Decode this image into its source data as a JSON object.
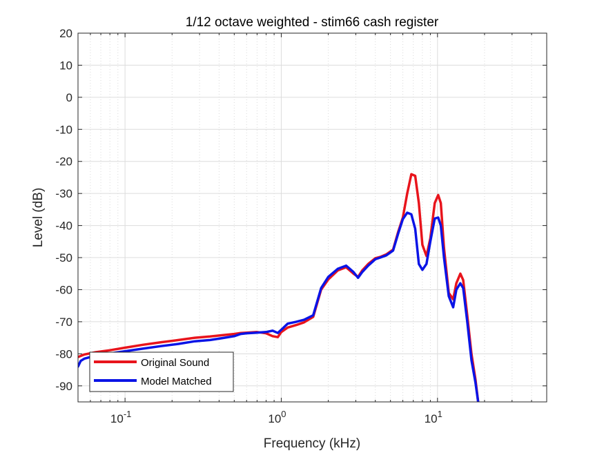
{
  "chart_data": {
    "type": "line",
    "title": "1/12 octave weighted - stim66 cash register",
    "xlabel": "Frequency (kHz)",
    "ylabel": "Level (dB)",
    "xscale": "log",
    "xlim": [
      0.05,
      50
    ],
    "ylim": [
      -95,
      20
    ],
    "grid": true,
    "minor_grid": true,
    "legend_placement": "bottom-left",
    "x_ticks": [
      {
        "base": "10",
        "exp": "-1",
        "value": 0.1
      },
      {
        "base": "10",
        "exp": "0",
        "value": 1
      },
      {
        "base": "10",
        "exp": "1",
        "value": 10
      }
    ],
    "y_ticks": [
      20,
      10,
      0,
      -10,
      -20,
      -30,
      -40,
      -50,
      -60,
      -70,
      -80,
      -90
    ],
    "series": [
      {
        "name": "Original Sound",
        "color": "#e8141c",
        "x": [
          0.05,
          0.055,
          0.065,
          0.08,
          0.1,
          0.13,
          0.17,
          0.22,
          0.28,
          0.35,
          0.42,
          0.5,
          0.55,
          0.6,
          0.7,
          0.8,
          0.88,
          0.95,
          1.0,
          1.1,
          1.25,
          1.4,
          1.6,
          1.8,
          2.0,
          2.3,
          2.6,
          2.9,
          3.1,
          3.3,
          3.6,
          4.0,
          4.3,
          4.7,
          5.2,
          5.6,
          6.0,
          6.4,
          6.8,
          7.2,
          7.6,
          8.0,
          8.5,
          9.0,
          9.6,
          10.1,
          10.5,
          11.0,
          11.8,
          12.6,
          13.2,
          14.0,
          14.6,
          15.5,
          16.5,
          17.5,
          18.2
        ],
        "y": [
          -81,
          -80.2,
          -79.5,
          -78.9,
          -78.1,
          -77.2,
          -76.4,
          -75.7,
          -75.0,
          -74.6,
          -74.2,
          -73.8,
          -73.5,
          -73.4,
          -73.2,
          -73.6,
          -74.5,
          -74.8,
          -73.2,
          -71.8,
          -71.0,
          -70.2,
          -68.5,
          -60.0,
          -56.8,
          -54.0,
          -53.0,
          -55.0,
          -56.0,
          -54.0,
          -52.0,
          -50.2,
          -49.8,
          -49.0,
          -47.5,
          -42.0,
          -37.5,
          -30.0,
          -24.0,
          -24.5,
          -33.0,
          -46.0,
          -49.5,
          -44.0,
          -33.0,
          -30.5,
          -33.0,
          -47.0,
          -61.0,
          -63.0,
          -58.0,
          -55.0,
          -57.0,
          -68.0,
          -80.0,
          -88.0,
          -95.0
        ]
      },
      {
        "name": "Model Matched",
        "color": "#0a14e6",
        "x": [
          0.05,
          0.052,
          0.055,
          0.06,
          0.07,
          0.08,
          0.1,
          0.13,
          0.17,
          0.22,
          0.28,
          0.35,
          0.42,
          0.5,
          0.55,
          0.6,
          0.7,
          0.8,
          0.88,
          0.95,
          1.0,
          1.1,
          1.25,
          1.4,
          1.6,
          1.8,
          2.0,
          2.3,
          2.6,
          2.9,
          3.1,
          3.3,
          3.6,
          4.0,
          4.3,
          4.7,
          5.2,
          5.6,
          6.0,
          6.4,
          6.8,
          7.2,
          7.6,
          8.0,
          8.5,
          9.0,
          9.6,
          10.1,
          10.5,
          11.0,
          11.8,
          12.6,
          13.2,
          14.0,
          14.6,
          15.5,
          16.5,
          17.5,
          18.2
        ],
        "y": [
          -84,
          -82.2,
          -81.5,
          -81.0,
          -80.6,
          -79.9,
          -79.2,
          -78.4,
          -77.6,
          -76.9,
          -76.1,
          -75.7,
          -75.1,
          -74.5,
          -73.8,
          -73.6,
          -73.4,
          -73.2,
          -72.8,
          -73.5,
          -72.5,
          -70.6,
          -70.0,
          -69.4,
          -68.0,
          -59.5,
          -56.0,
          -53.5,
          -52.5,
          -54.5,
          -56.3,
          -54.5,
          -52.5,
          -50.5,
          -50.0,
          -49.3,
          -47.8,
          -42.5,
          -38.0,
          -36.0,
          -36.5,
          -41.0,
          -52.0,
          -53.8,
          -52.0,
          -45.0,
          -37.8,
          -37.5,
          -40.0,
          -50.0,
          -62.0,
          -65.5,
          -60.0,
          -58.0,
          -59.5,
          -70.0,
          -82.0,
          -89.0,
          -95.0
        ]
      }
    ]
  }
}
